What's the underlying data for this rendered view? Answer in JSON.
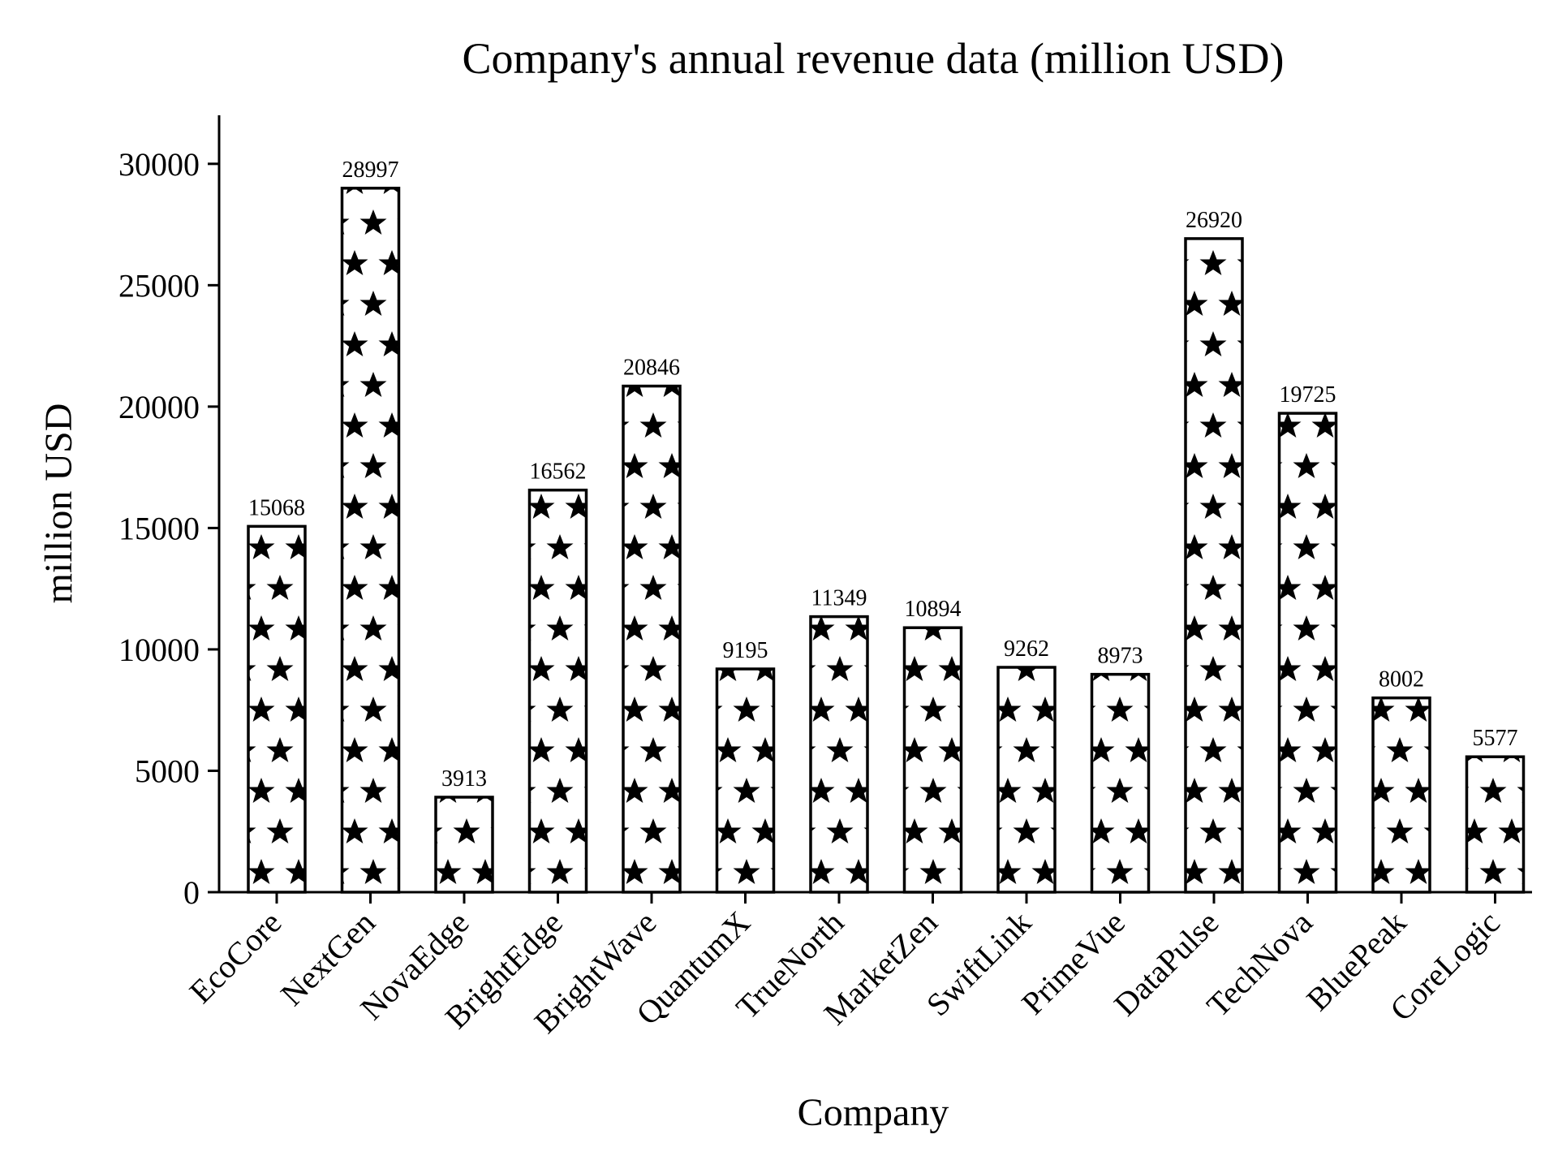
{
  "chart_data": {
    "type": "bar",
    "title": "Company's annual revenue data (million USD)",
    "xlabel": "Company",
    "ylabel": "million USD",
    "categories": [
      "EcoCore",
      "NextGen",
      "NovaEdge",
      "BrightEdge",
      "BrightWave",
      "QuantumX",
      "TrueNorth",
      "MarketZen",
      "SwiftLink",
      "PrimeVue",
      "DataPulse",
      "TechNova",
      "BluePeak",
      "CoreLogic"
    ],
    "values": [
      15068,
      28997,
      3913,
      16562,
      20846,
      9195,
      11349,
      10894,
      9262,
      8973,
      26920,
      19725,
      8002,
      5577
    ],
    "data_labels": [
      "15068",
      "28997",
      "3913",
      "16562",
      "20846",
      "9195",
      "11349",
      "10894",
      "9262",
      "8973",
      "26920",
      "19725",
      "8002",
      "5577"
    ],
    "yticks": [
      0,
      5000,
      10000,
      15000,
      20000,
      25000,
      30000
    ],
    "ytick_labels": [
      "0",
      "5000",
      "10000",
      "15000",
      "20000",
      "25000",
      "30000"
    ],
    "ylim": [
      0,
      32000
    ],
    "grid": false,
    "bar_fill": "star-hatch",
    "colors": {
      "bar_face": "#ffffff",
      "bar_edge": "#000000",
      "hatch": "#000000"
    }
  }
}
